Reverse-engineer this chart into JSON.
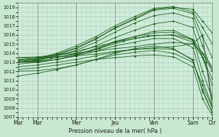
{
  "xlabel": "Pression niveau de la mer( hPa )",
  "bg_color": "#c8e8d0",
  "plot_bg_color": "#d0ecda",
  "grid_color": "#a0c8b0",
  "line_color": "#1a5c1a",
  "ylim": [
    1007,
    1019.5
  ],
  "yticks": [
    1007,
    1008,
    1009,
    1010,
    1011,
    1012,
    1013,
    1014,
    1015,
    1016,
    1017,
    1018,
    1019
  ],
  "xtick_labels": [
    "Mar",
    "Mar",
    "Mer",
    "Jeu",
    "Ven",
    "Sam",
    "Dir"
  ],
  "xtick_positions": [
    0,
    12,
    36,
    60,
    84,
    108,
    120
  ],
  "x_vlines": [
    12,
    36,
    60,
    84,
    108
  ],
  "total_hours": 120,
  "series": [
    {
      "x": [
        0,
        12,
        24,
        36,
        48,
        60,
        72,
        84,
        96,
        108,
        114,
        120
      ],
      "y": [
        1013.0,
        1013.2,
        1013.8,
        1014.5,
        1015.5,
        1016.8,
        1017.8,
        1018.8,
        1019.0,
        1018.8,
        1017.5,
        1016.2
      ]
    },
    {
      "x": [
        0,
        12,
        24,
        36,
        48,
        60,
        72,
        84,
        96,
        108,
        114,
        120
      ],
      "y": [
        1013.2,
        1013.4,
        1014.0,
        1014.8,
        1015.8,
        1017.0,
        1018.0,
        1018.9,
        1019.1,
        1018.5,
        1016.8,
        1015.0
      ]
    },
    {
      "x": [
        0,
        12,
        24,
        36,
        48,
        60,
        72,
        84,
        96,
        108,
        114,
        120
      ],
      "y": [
        1013.1,
        1013.3,
        1013.9,
        1014.6,
        1015.6,
        1016.7,
        1017.7,
        1018.7,
        1018.9,
        1018.3,
        1015.8,
        1013.5
      ]
    },
    {
      "x": [
        0,
        12,
        24,
        36,
        48,
        60,
        72,
        84,
        96,
        108,
        114,
        120
      ],
      "y": [
        1013.0,
        1013.2,
        1013.7,
        1014.3,
        1015.2,
        1016.3,
        1017.3,
        1018.1,
        1018.4,
        1017.8,
        1014.8,
        1012.0
      ]
    },
    {
      "x": [
        0,
        12,
        24,
        36,
        48,
        60,
        72,
        84,
        96,
        108,
        114,
        120
      ],
      "y": [
        1013.0,
        1013.1,
        1013.5,
        1014.0,
        1014.8,
        1015.7,
        1016.5,
        1017.2,
        1017.5,
        1016.8,
        1013.5,
        1010.5
      ]
    },
    {
      "x": [
        0,
        12,
        24,
        36,
        48,
        60,
        72,
        84,
        96,
        108,
        114,
        120
      ],
      "y": [
        1012.8,
        1013.0,
        1013.3,
        1013.8,
        1014.4,
        1015.2,
        1015.8,
        1016.4,
        1016.5,
        1015.5,
        1012.0,
        1009.0
      ]
    },
    {
      "x": [
        0,
        12,
        24,
        36,
        48,
        60,
        72,
        84,
        96,
        108,
        114,
        120
      ],
      "y": [
        1013.0,
        1013.1,
        1013.3,
        1013.7,
        1014.2,
        1014.8,
        1015.2,
        1015.6,
        1015.6,
        1014.6,
        1011.0,
        1008.2
      ]
    },
    {
      "x": [
        0,
        12,
        24,
        36,
        48,
        60,
        72,
        84,
        96,
        108,
        114,
        120
      ],
      "y": [
        1012.5,
        1012.7,
        1013.0,
        1013.3,
        1013.7,
        1014.1,
        1014.4,
        1014.5,
        1014.4,
        1013.3,
        1009.8,
        1007.5
      ]
    },
    {
      "x": [
        0,
        12,
        24,
        36,
        48,
        60,
        72,
        84,
        96,
        108,
        114,
        120
      ],
      "y": [
        1012.2,
        1012.4,
        1012.7,
        1013.0,
        1013.3,
        1013.5,
        1013.7,
        1013.8,
        1013.6,
        1012.5,
        1009.0,
        1007.2
      ]
    },
    {
      "x": [
        0,
        12,
        24,
        36,
        48,
        60,
        72,
        84,
        96,
        108,
        114,
        120
      ],
      "y": [
        1013.5,
        1013.6,
        1013.8,
        1014.0,
        1014.2,
        1014.5,
        1014.7,
        1015.0,
        1015.2,
        1015.0,
        1014.0,
        1012.5
      ]
    },
    {
      "x": [
        0,
        12,
        24,
        36,
        48,
        60,
        72,
        84,
        96,
        108,
        114,
        120
      ],
      "y": [
        1013.3,
        1013.5,
        1013.8,
        1014.2,
        1014.7,
        1015.2,
        1015.6,
        1015.9,
        1016.0,
        1015.5,
        1014.0,
        1012.0
      ]
    },
    {
      "x": [
        0,
        12,
        24,
        36,
        48,
        60,
        72,
        84,
        96,
        108,
        114,
        120
      ],
      "y": [
        1013.0,
        1013.0,
        1013.3,
        1013.8,
        1014.5,
        1015.3,
        1015.8,
        1016.2,
        1016.3,
        1015.4,
        1013.5,
        1011.2
      ]
    },
    {
      "x": [
        0,
        12,
        24,
        36,
        48,
        60,
        72,
        84,
        96,
        108,
        114,
        120
      ],
      "y": [
        1011.5,
        1011.8,
        1012.2,
        1012.7,
        1013.3,
        1013.8,
        1014.1,
        1014.3,
        1014.0,
        1013.0,
        1010.5,
        1008.0
      ]
    },
    {
      "x": [
        0,
        12,
        24,
        36,
        48,
        60,
        72,
        84,
        96,
        108,
        114,
        120
      ],
      "y": [
        1012.0,
        1012.1,
        1012.3,
        1012.7,
        1013.3,
        1014.0,
        1014.5,
        1014.8,
        1014.5,
        1013.2,
        1010.0,
        1007.5
      ]
    },
    {
      "x": [
        0,
        12,
        24,
        36,
        48,
        60,
        72,
        84,
        96,
        108,
        114,
        120
      ],
      "y": [
        1013.5,
        1013.5,
        1013.6,
        1013.7,
        1013.9,
        1014.2,
        1014.4,
        1014.6,
        1014.7,
        1015.0,
        1016.0,
        1008.0
      ]
    },
    {
      "x": [
        0,
        10,
        20,
        36,
        50,
        65,
        80,
        95,
        108,
        116,
        120
      ],
      "y": [
        1013.2,
        1013.3,
        1013.5,
        1013.9,
        1014.5,
        1015.3,
        1015.9,
        1016.0,
        1015.2,
        1013.0,
        1009.0
      ]
    }
  ]
}
